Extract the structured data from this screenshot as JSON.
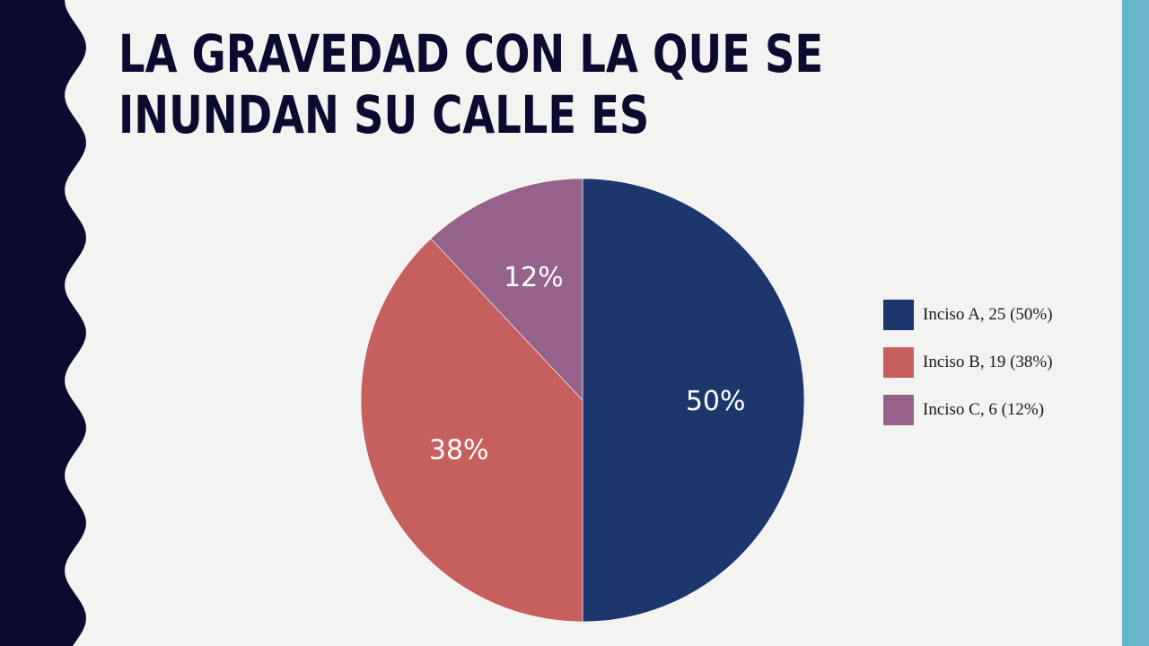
{
  "slide": {
    "title": "LA GRAVEDAD CON LA QUE SE\nINUNDAN SU CALLE ES",
    "left_band_color": "#0b0a2f",
    "right_band_color": "#67b5c9",
    "background_color": "#f3f3f1"
  },
  "chart_data": {
    "type": "pie",
    "slices": [
      {
        "label": "Inciso A, 25 (50%)",
        "value": 25,
        "percent_label": "50%",
        "color": "#1d376d"
      },
      {
        "label": "Inciso B, 19 (38%)",
        "value": 19,
        "percent_label": "38%",
        "color": "#c6605f"
      },
      {
        "label": "Inciso C, 6 (12%)",
        "value": 6,
        "percent_label": "12%",
        "color": "#956389"
      }
    ],
    "start": "top",
    "direction": "clockwise",
    "legend_position": "right"
  }
}
